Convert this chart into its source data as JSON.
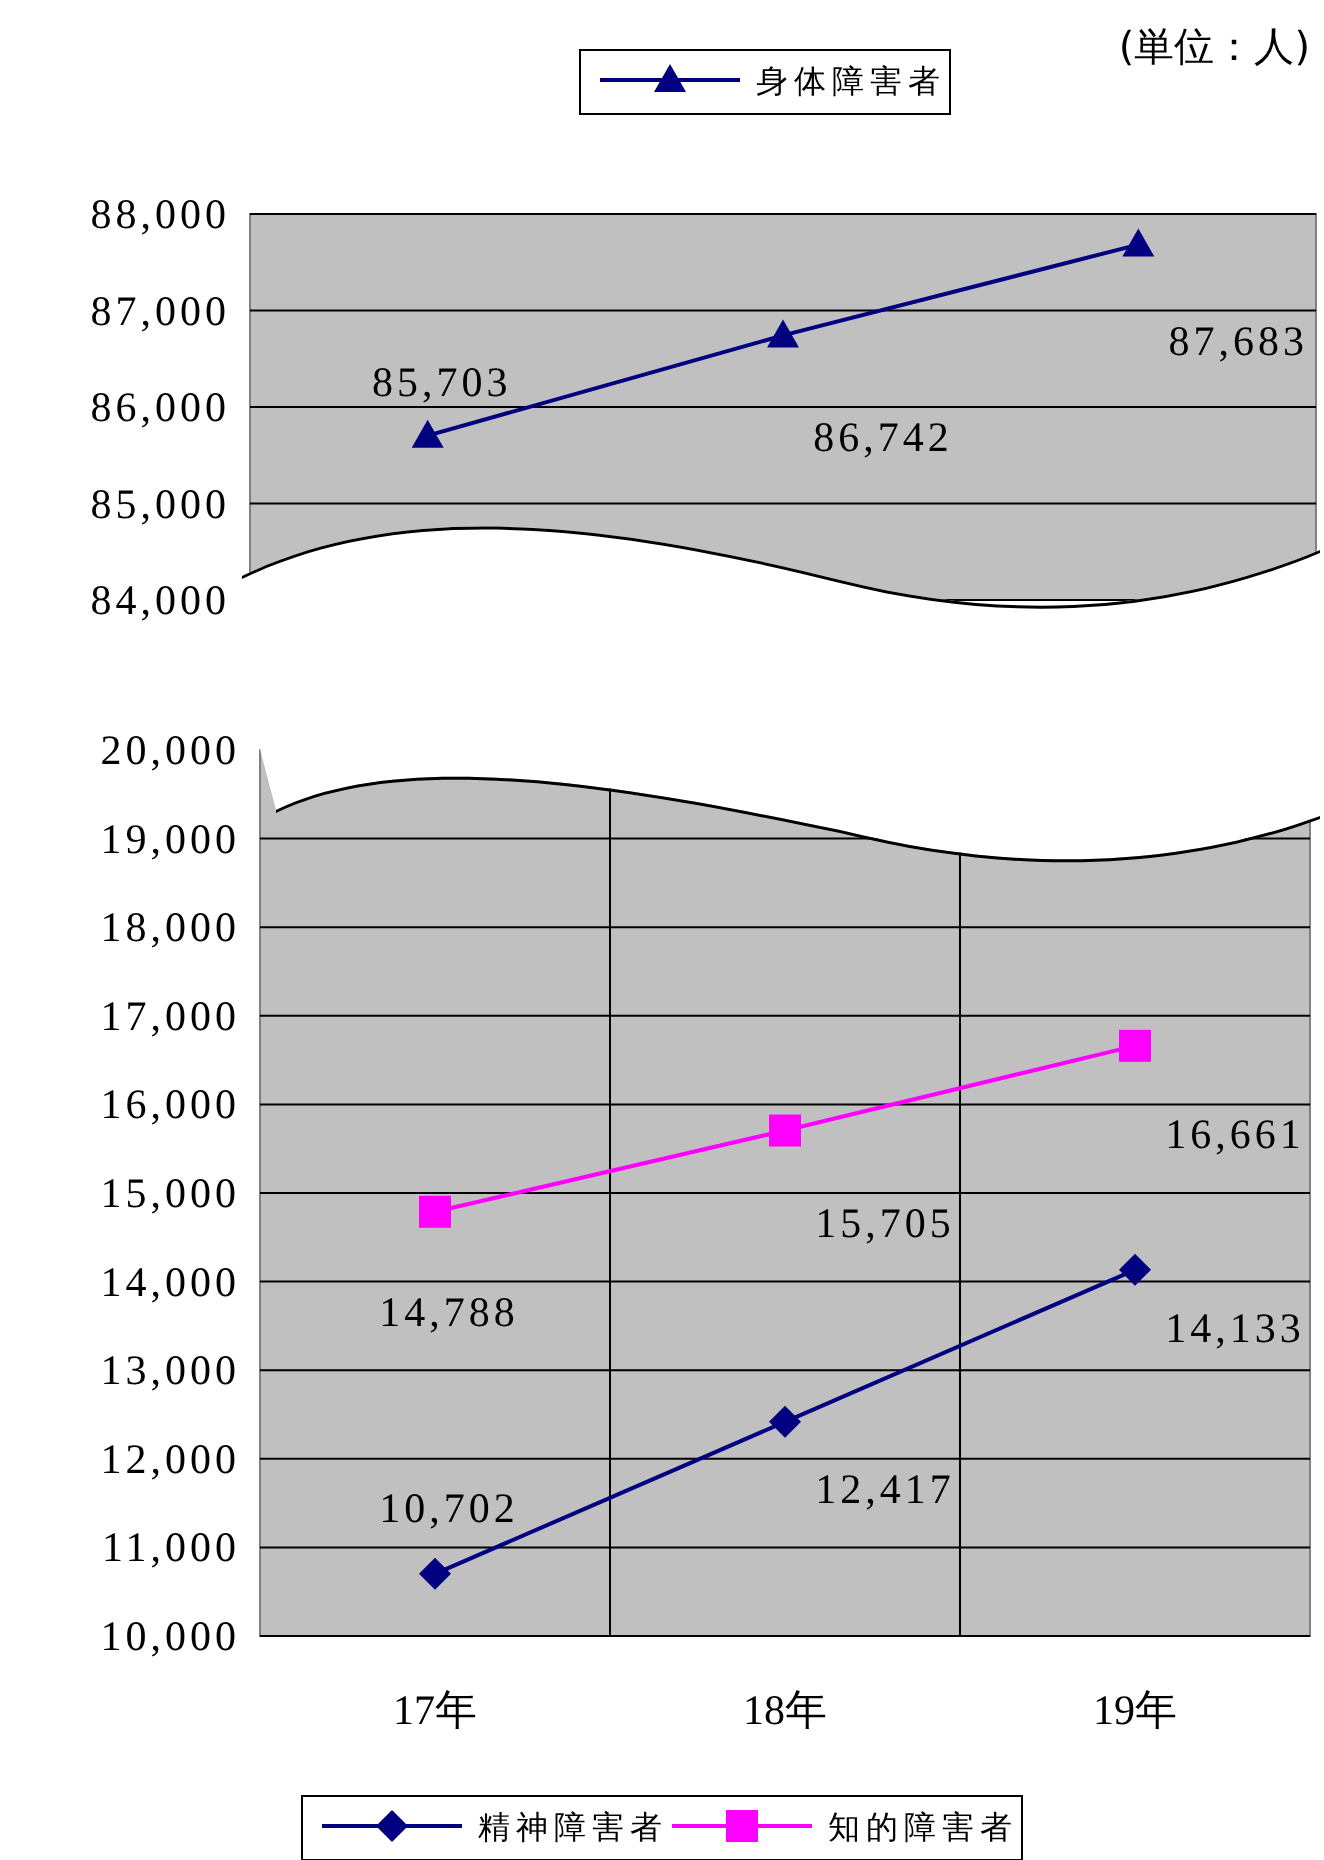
{
  "chart_data": [
    {
      "type": "line",
      "categories": [
        null,
        null,
        null
      ],
      "tick_labels": "y",
      "series": [
        {
          "name": "身体障害者",
          "color": "#000080",
          "marker": "triangle",
          "values": [
            85703,
            86742,
            87683
          ],
          "value_labels": [
            "85,703",
            "86,742",
            "87,683"
          ]
        }
      ],
      "ylim": [
        84000,
        88000
      ],
      "yticks": [
        {
          "value": 84000,
          "label": "84,000"
        },
        {
          "value": 85000,
          "label": "85,000"
        },
        {
          "value": 86000,
          "label": "86,000"
        },
        {
          "value": 87000,
          "label": "87,000"
        },
        {
          "value": 88000,
          "label": "88,000"
        }
      ],
      "grid": "y",
      "legend": "top",
      "annotations": [
        "(単位：人)"
      ]
    },
    {
      "type": "line",
      "categories": [
        "17年",
        "18年",
        "19年"
      ],
      "series": [
        {
          "name": "精神障害者",
          "color": "#000080",
          "marker": "diamond",
          "values": [
            10702,
            12417,
            14133
          ],
          "value_labels": [
            "10,702",
            "12,417",
            "14,133"
          ]
        },
        {
          "name": "知的障害者",
          "color": "#ff00ff",
          "marker": "square",
          "values": [
            14788,
            15705,
            16661
          ],
          "value_labels": [
            "14,788",
            "15,705",
            "16,661"
          ]
        }
      ],
      "ylim": [
        10000,
        20000
      ],
      "yticks": [
        {
          "value": 10000,
          "label": "10,000"
        },
        {
          "value": 11000,
          "label": "11,000"
        },
        {
          "value": 12000,
          "label": "12,000"
        },
        {
          "value": 13000,
          "label": "13,000"
        },
        {
          "value": 14000,
          "label": "14,000"
        },
        {
          "value": 15000,
          "label": "15,000"
        },
        {
          "value": 16000,
          "label": "16,000"
        },
        {
          "value": 17000,
          "label": "17,000"
        },
        {
          "value": 18000,
          "label": "18,000"
        },
        {
          "value": 19000,
          "label": "19,000"
        },
        {
          "value": 20000,
          "label": "20,000"
        }
      ],
      "grid": true,
      "legend": "bottom"
    }
  ]
}
